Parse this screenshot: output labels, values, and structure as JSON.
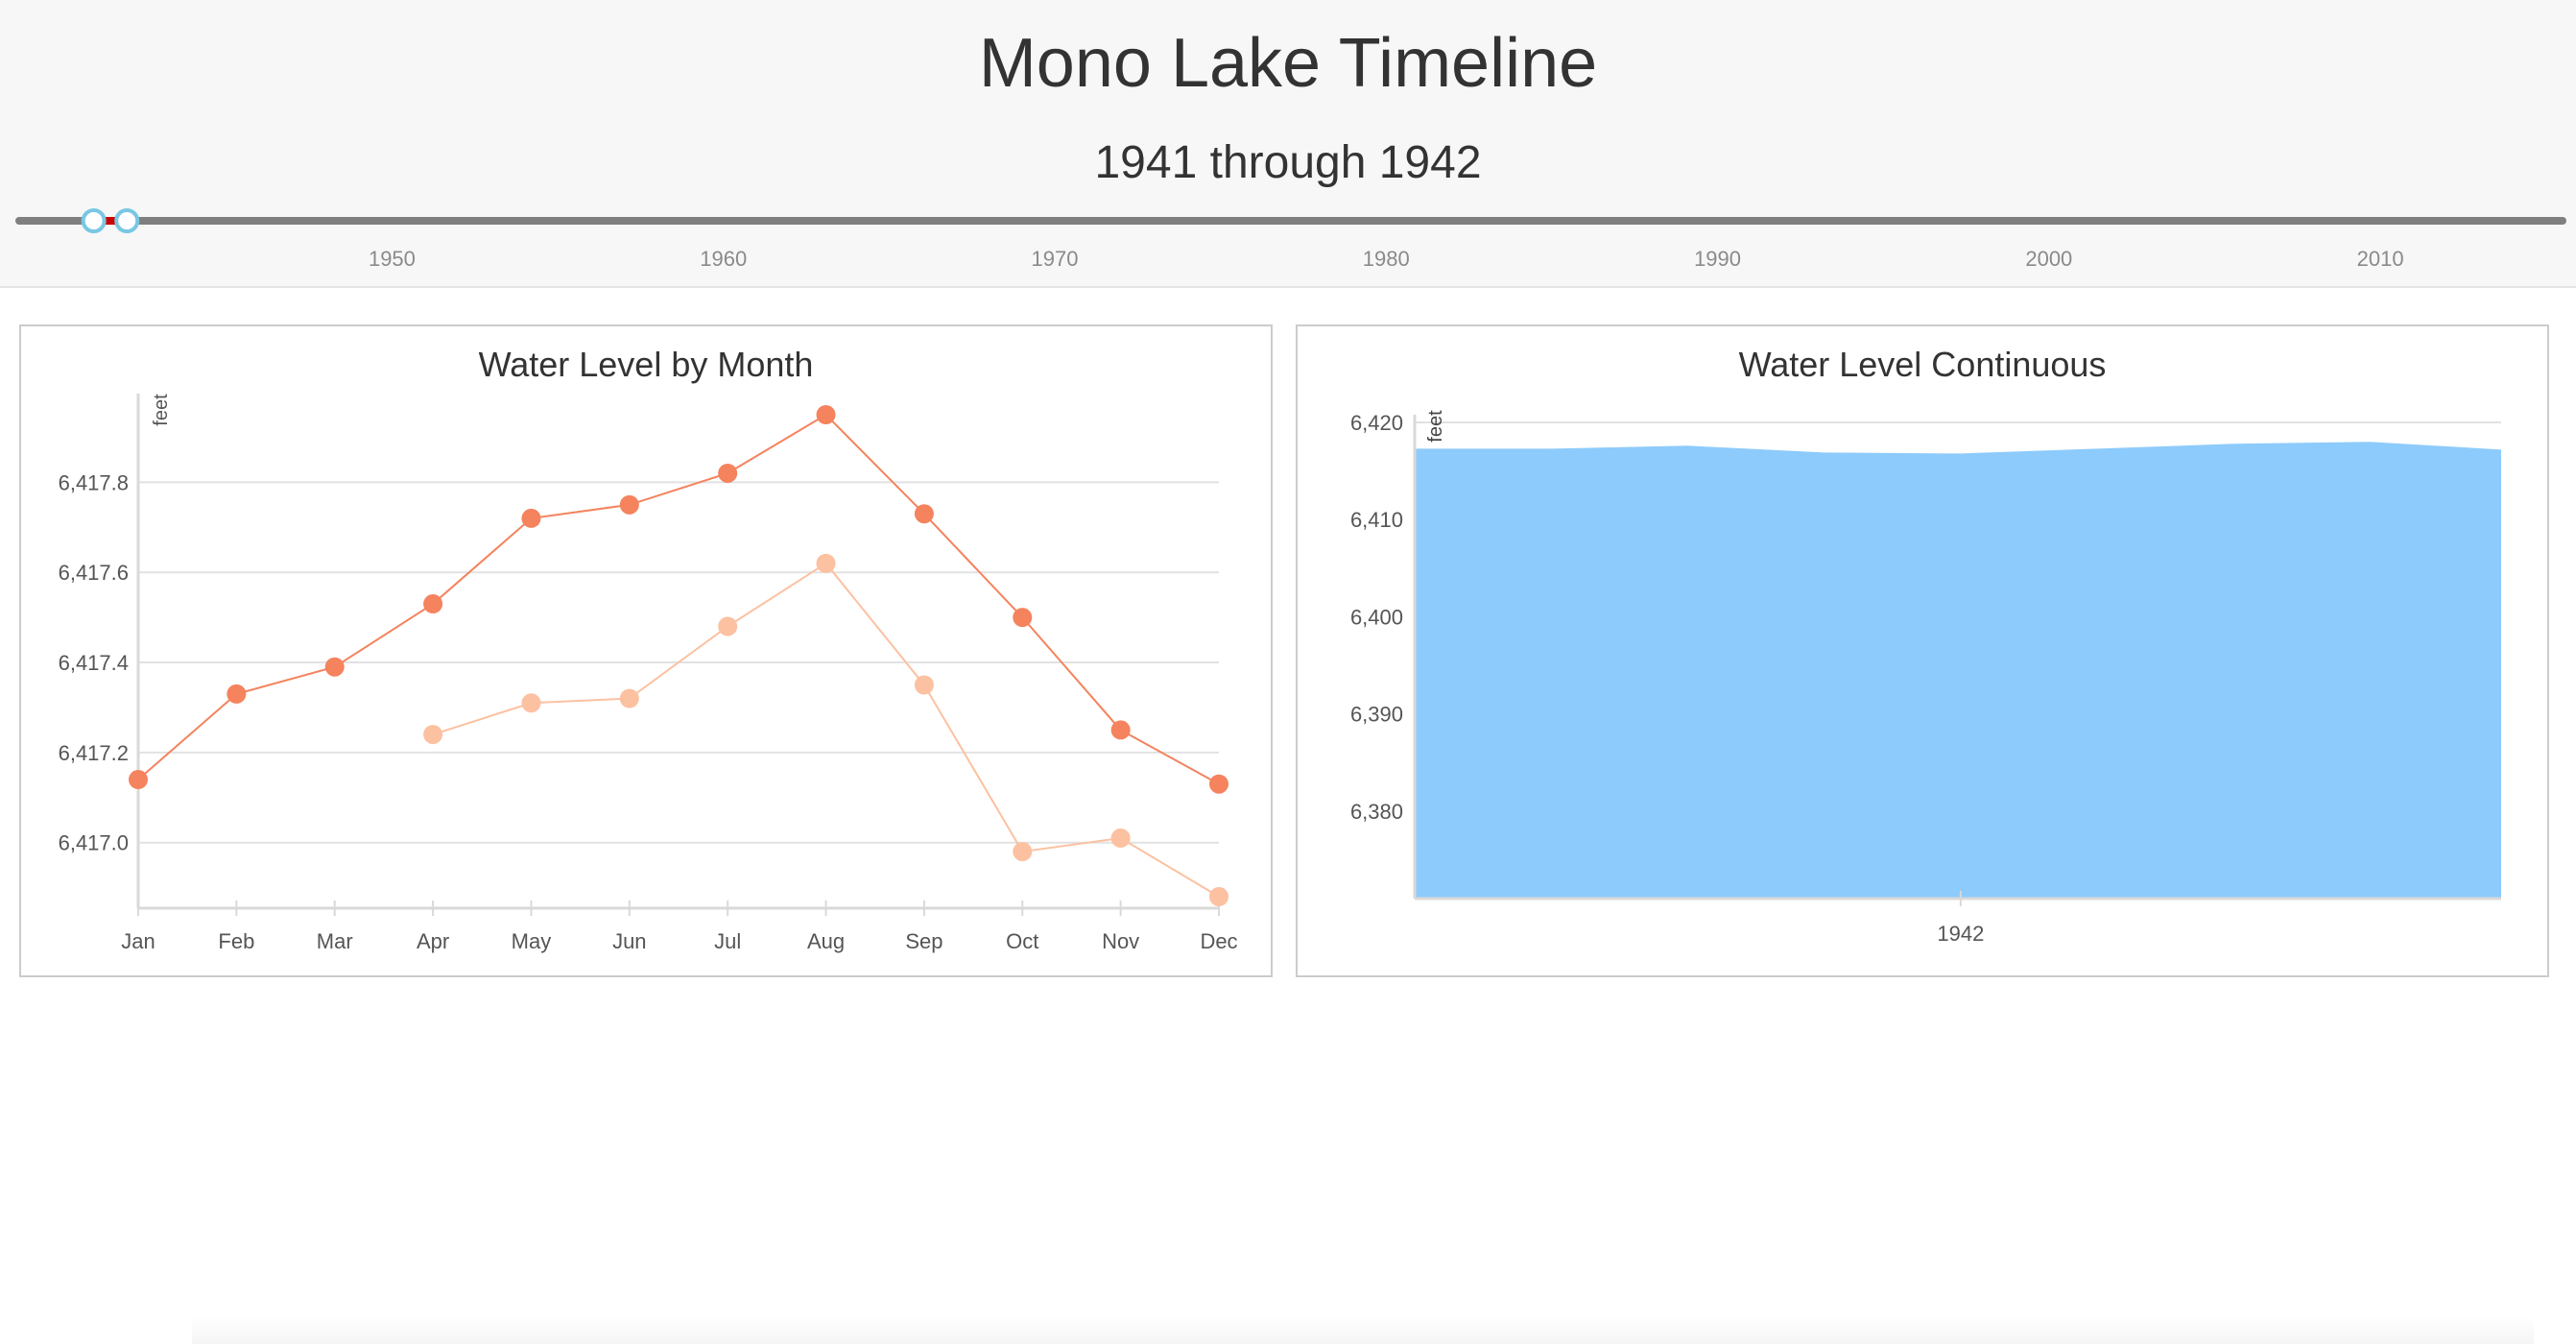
{
  "header": {
    "title": "Mono Lake Timeline",
    "subtitle": "1941 through 1942"
  },
  "slider": {
    "min_year": 1938.75,
    "max_year": 2015.5,
    "start_year": 1941,
    "end_year": 1942,
    "tick_years": [
      1950,
      1960,
      1970,
      1980,
      1990,
      2000,
      2010
    ],
    "colors": {
      "track": "#7f7f7f",
      "selected": "#cc0000",
      "handle_border": "#79c7e3",
      "handle_fill": "#ffffff",
      "tick_label": "#8a8a8a"
    }
  },
  "panels": {
    "monthly": {
      "title": "Water Level by Month"
    },
    "continuous": {
      "title": "Water Level Continuous"
    }
  },
  "chart_data": [
    {
      "type": "line",
      "title": "Water Level by Month",
      "ylabel": "feet",
      "xlabel": "",
      "categories": [
        "Jan",
        "Feb",
        "Mar",
        "Apr",
        "May",
        "Jun",
        "Jul",
        "Aug",
        "Sep",
        "Oct",
        "Nov",
        "Dec"
      ],
      "ylim": [
        6416.88,
        6417.95
      ],
      "yticks": [
        6417.0,
        6417.2,
        6417.4,
        6417.6,
        6417.8
      ],
      "ytick_labels": [
        "6,417.0",
        "6,417.2",
        "6,417.4",
        "6,417.6",
        "6,417.8"
      ],
      "grid": true,
      "series": [
        {
          "color": "#f4835e",
          "values": [
            6417.14,
            6417.33,
            6417.39,
            6417.53,
            6417.72,
            6417.75,
            6417.82,
            6417.95,
            6417.73,
            6417.5,
            6417.25,
            6417.13
          ]
        },
        {
          "color": "#fcc1a1",
          "values": [
            null,
            null,
            null,
            6417.24,
            6417.31,
            6417.32,
            6417.48,
            6417.62,
            6417.35,
            6416.98,
            6417.01,
            6416.88
          ]
        }
      ]
    },
    {
      "type": "area",
      "title": "Water Level Continuous",
      "ylabel": "feet",
      "xlabel": "",
      "xlim": [
        1941.0,
        1942.99
      ],
      "ylim": [
        6371.0,
        6420.0
      ],
      "yticks": [
        6380,
        6390,
        6400,
        6410,
        6420
      ],
      "ytick_labels": [
        "6,380",
        "6,390",
        "6,400",
        "6,410",
        "6,420"
      ],
      "xticks": [
        1942
      ],
      "xtick_labels": [
        "1942"
      ],
      "grid": true,
      "color": "#8dcbfc",
      "series": [
        {
          "x": [
            1941.0,
            1941.25,
            1941.5,
            1941.75,
            1942.0,
            1942.25,
            1942.5,
            1942.75,
            1942.99
          ],
          "values": [
            6417.3,
            6417.3,
            6417.6,
            6416.9,
            6416.8,
            6417.3,
            6417.8,
            6418.0,
            6417.2
          ]
        }
      ]
    }
  ]
}
